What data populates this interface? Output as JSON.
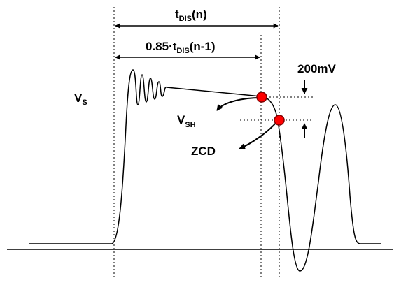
{
  "labels": {
    "t_dis_n": {
      "main": "t",
      "sub": "DIS",
      "tail": "(n)"
    },
    "t_dis_prev": {
      "main": "0.85·t",
      "sub": "DIS",
      "tail": "(n-1)"
    },
    "v_s": {
      "main": "V",
      "sub": "S"
    },
    "v_sh": {
      "main": "V",
      "sub": "SH"
    },
    "zcd": "ZCD",
    "mv200": "200mV"
  },
  "colors": {
    "stroke": "#000000",
    "marker_fill": "#ff0000",
    "marker_stroke": "#800000",
    "background": "#ffffff"
  }
}
